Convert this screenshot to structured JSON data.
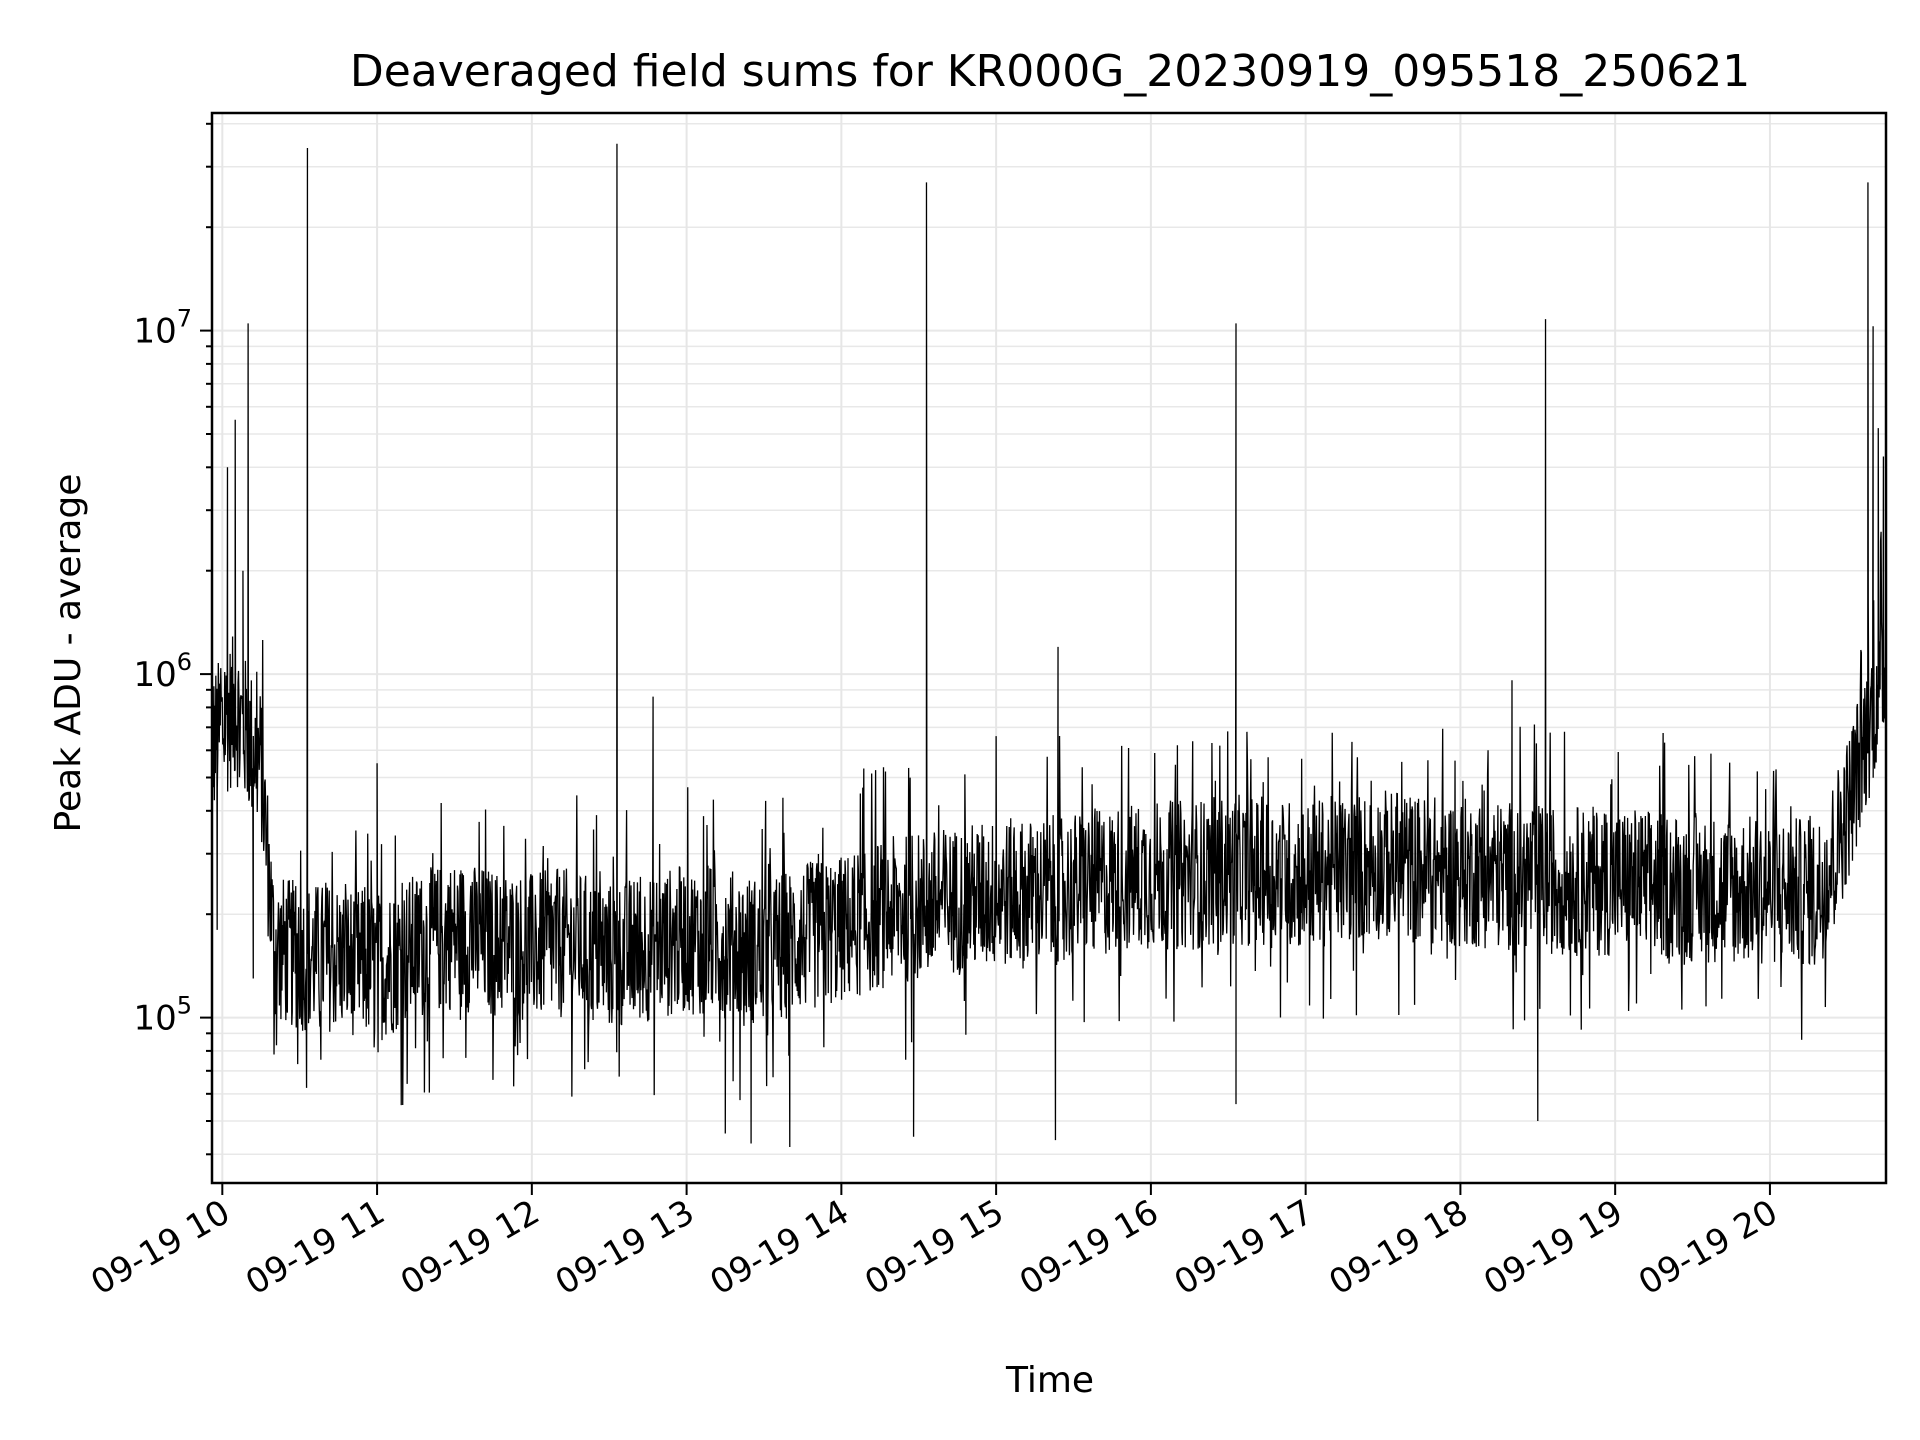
{
  "chart_data": {
    "type": "line",
    "title": "Deaveraged field sums for KR000G_20230919_095518_250621",
    "xlabel": "Time",
    "ylabel": "Peak ADU - average",
    "yscale": "log",
    "ylim": [
      33000,
      43000000
    ],
    "xlim": [
      "2023-09-19 09:56",
      "2023-09-19 20:45"
    ],
    "x_ticks": [
      "09-19 10",
      "09-19 11",
      "09-19 12",
      "09-19 13",
      "09-19 14",
      "09-19 15",
      "09-19 16",
      "09-19 17",
      "09-19 18",
      "09-19 19",
      "09-19 20"
    ],
    "y_ticks": [
      {
        "base": "10",
        "exp": "5",
        "value": 100000
      },
      {
        "base": "10",
        "exp": "6",
        "value": 1000000
      },
      {
        "base": "10",
        "exp": "7",
        "value": 10000000
      }
    ],
    "grid": true,
    "line_color": "#000000",
    "series": [
      {
        "x": [
          "2023-09-19 09:55",
          "2023-09-19 10:00",
          "2023-09-19 10:05",
          "2023-09-19 10:10",
          "2023-09-19 10:15",
          "2023-09-19 10:20",
          "2023-09-19 10:30",
          "2023-09-19 10:45",
          "2023-09-19 11:00",
          "2023-09-19 11:15",
          "2023-09-19 11:30",
          "2023-09-19 11:45",
          "2023-09-19 12:00",
          "2023-09-19 12:15",
          "2023-09-19 12:30",
          "2023-09-19 12:45",
          "2023-09-19 13:00",
          "2023-09-19 13:15",
          "2023-09-19 13:30",
          "2023-09-19 13:45",
          "2023-09-19 14:00",
          "2023-09-19 14:15",
          "2023-09-19 14:30",
          "2023-09-19 14:45",
          "2023-09-19 15:00",
          "2023-09-19 15:15",
          "2023-09-19 15:30",
          "2023-09-19 15:45",
          "2023-09-19 16:00",
          "2023-09-19 16:15",
          "2023-09-19 16:30",
          "2023-09-19 16:45",
          "2023-09-19 17:00",
          "2023-09-19 17:15",
          "2023-09-19 17:30",
          "2023-09-19 17:45",
          "2023-09-19 18:00",
          "2023-09-19 18:15",
          "2023-09-19 18:30",
          "2023-09-19 18:45",
          "2023-09-19 19:00",
          "2023-09-19 19:15",
          "2023-09-19 19:30",
          "2023-09-19 19:45",
          "2023-09-19 20:00",
          "2023-09-19 20:15",
          "2023-09-19 20:20",
          "2023-09-19 20:30",
          "2023-09-19 20:40",
          "2023-09-19 20:45"
        ],
        "values": [
          600000,
          700000,
          800000,
          650000,
          550000,
          160000,
          150000,
          150000,
          140000,
          160000,
          175000,
          165000,
          160000,
          165000,
          150000,
          160000,
          170000,
          165000,
          155000,
          170000,
          180000,
          200000,
          210000,
          220000,
          230000,
          230000,
          240000,
          250000,
          260000,
          260000,
          270000,
          265000,
          260000,
          270000,
          280000,
          270000,
          265000,
          260000,
          255000,
          250000,
          250000,
          245000,
          240000,
          235000,
          235000,
          230000,
          240000,
          400000,
          800000,
          1100000
        ]
      }
    ],
    "spikes": [
      {
        "x": "2023-09-19 10:02",
        "value": 4000000
      },
      {
        "x": "2023-09-19 10:05",
        "value": 5500000
      },
      {
        "x": "2023-09-19 10:08",
        "value": 2000000
      },
      {
        "x": "2023-09-19 10:10",
        "value": 10500000
      },
      {
        "x": "2023-09-19 10:33",
        "value": 34000000
      },
      {
        "x": "2023-09-19 11:00",
        "value": 550000
      },
      {
        "x": "2023-09-19 12:33",
        "value": 35000000
      },
      {
        "x": "2023-09-19 12:47",
        "value": 860000
      },
      {
        "x": "2023-09-19 14:33",
        "value": 27000000
      },
      {
        "x": "2023-09-19 15:00",
        "value": 660000
      },
      {
        "x": "2023-09-19 15:24",
        "value": 1200000
      },
      {
        "x": "2023-09-19 16:33",
        "value": 10500000
      },
      {
        "x": "2023-09-19 18:20",
        "value": 960000
      },
      {
        "x": "2023-09-19 18:33",
        "value": 10800000
      },
      {
        "x": "2023-09-19 20:38",
        "value": 27000000
      },
      {
        "x": "2023-09-19 20:40",
        "value": 10300000
      },
      {
        "x": "2023-09-19 20:42",
        "value": 5200000
      },
      {
        "x": "2023-09-19 20:44",
        "value": 4300000
      }
    ],
    "dips": [
      {
        "x": "2023-09-19 09:58",
        "value": 180000
      },
      {
        "x": "2023-09-19 10:12",
        "value": 130000
      },
      {
        "x": "2023-09-19 13:15",
        "value": 46000
      },
      {
        "x": "2023-09-19 13:25",
        "value": 43000
      },
      {
        "x": "2023-09-19 13:40",
        "value": 42000
      },
      {
        "x": "2023-09-19 14:28",
        "value": 45000
      },
      {
        "x": "2023-09-19 15:23",
        "value": 44000
      },
      {
        "x": "2023-09-19 16:33",
        "value": 56000
      },
      {
        "x": "2023-09-19 18:30",
        "value": 50000
      }
    ]
  }
}
